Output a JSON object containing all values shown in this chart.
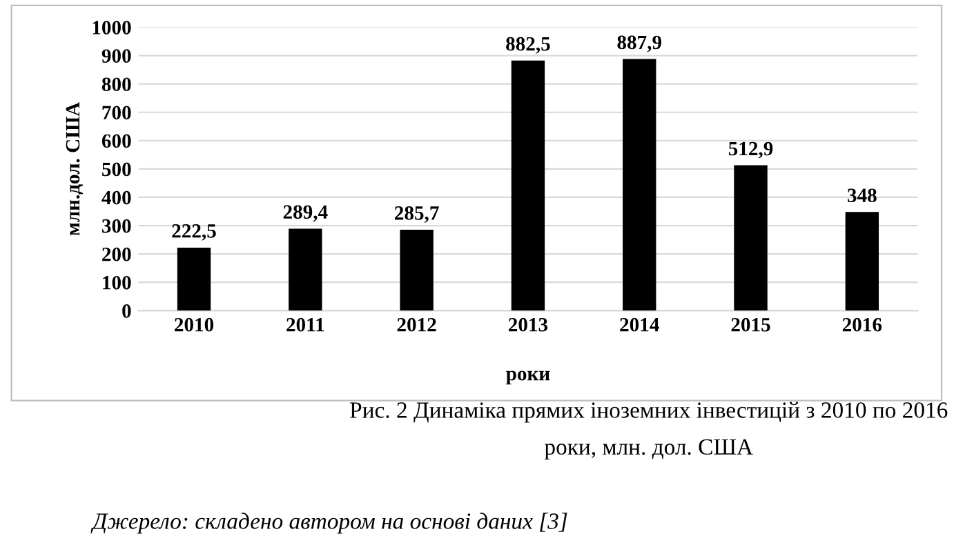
{
  "chart_data": {
    "type": "bar",
    "xlabel": "роки",
    "ylabel": "млн.дол. США",
    "categories": [
      "2010",
      "2011",
      "2012",
      "2013",
      "2014",
      "2015",
      "2016"
    ],
    "values": [
      222.5,
      289.4,
      285.7,
      882.5,
      887.9,
      512.9,
      348
    ],
    "value_labels": [
      "222,5",
      "289,4",
      "285,7",
      "882,5",
      "887,9",
      "512,9",
      "348"
    ],
    "color": "#000000",
    "ylim": [
      0,
      1000
    ],
    "yticks": [
      0,
      100,
      200,
      300,
      400,
      500,
      600,
      700,
      800,
      900,
      1000
    ],
    "grid": "y",
    "annotations": [
      "Рис. 2 Динаміка прямих іноземних інвестицій з 2010 по 2016 роки, млн. дол. США",
      "Джерело: складено автором на основі даних [3]"
    ]
  }
}
